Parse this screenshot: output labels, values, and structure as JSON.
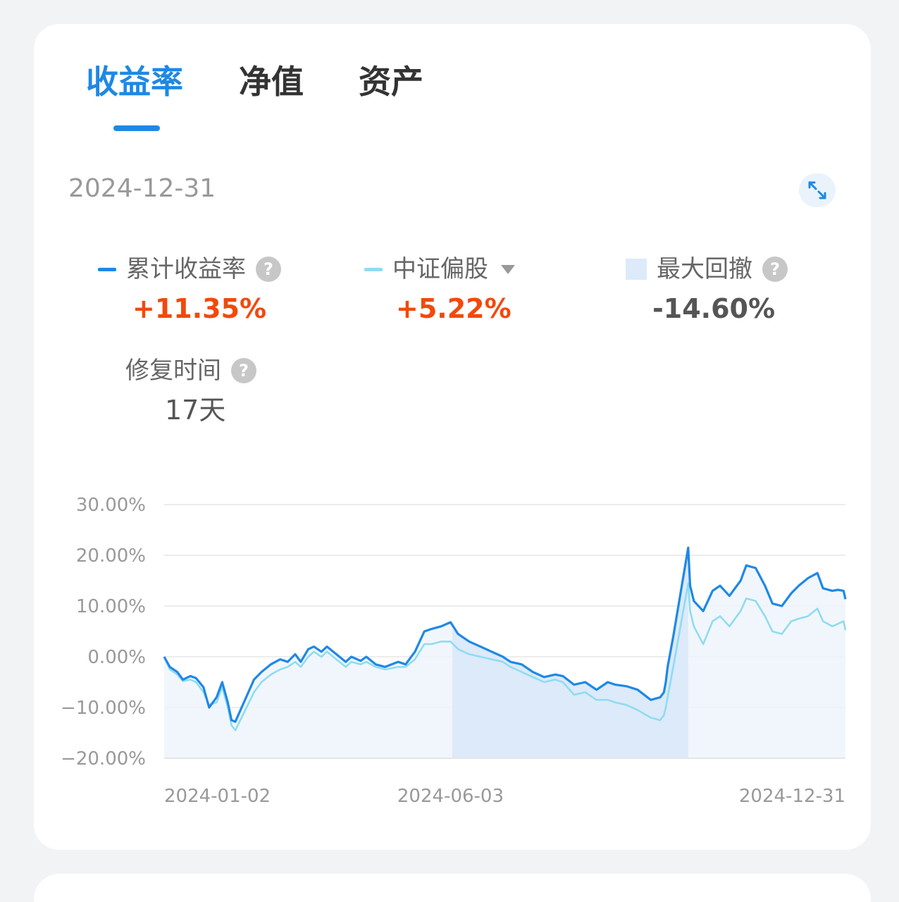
{
  "tabs": [
    {
      "label": "收益率",
      "active": true
    },
    {
      "label": "净值",
      "active": false
    },
    {
      "label": "资产",
      "active": false
    }
  ],
  "date": "2024-12-31",
  "icons": {
    "expand": "expand-arrows-icon",
    "help": "question-icon",
    "dropdown": "caret-down-icon"
  },
  "metrics": {
    "cumulative": {
      "label": "累计收益率",
      "value": "+11.35%",
      "color": "#1e88e5"
    },
    "benchmark": {
      "label": "中证偏股",
      "value": "+5.22%",
      "color": "#8fdcef"
    },
    "max_drawdown": {
      "label": "最大回撤",
      "value": "-14.60%",
      "color": "#dceafa"
    },
    "recovery": {
      "label": "修复时间",
      "value": "17天"
    }
  },
  "help_glyph": "?",
  "colors": {
    "accent": "#1e88e5",
    "up": "#f2490c",
    "benchmark": "#8fdcef",
    "drawdown_area": "#dceafa"
  },
  "chart_data": {
    "type": "line",
    "y_unit": "%",
    "ylim": [
      -20,
      30
    ],
    "y_ticks": [
      30,
      20,
      10,
      0,
      -10,
      -20
    ],
    "y_tick_labels": [
      "30.00%",
      "20.00%",
      "10.00%",
      "0.00%",
      "−10.00%",
      "−20.00%"
    ],
    "x_tick_labels": [
      "2024-01-02",
      "2024-06-03",
      "2024-12-31"
    ],
    "x_range": [
      "2024-01-02",
      "2024-12-31"
    ],
    "grid": true,
    "drawdown_period": [
      "2024-06-04",
      "2024-10-08"
    ],
    "series": [
      {
        "name": "累计收益率",
        "color": "#1e88e5",
        "points": [
          [
            "2024-01-02",
            0.0
          ],
          [
            "2024-01-05",
            -2.0
          ],
          [
            "2024-01-09",
            -3.0
          ],
          [
            "2024-01-12",
            -4.5
          ],
          [
            "2024-01-16",
            -3.8
          ],
          [
            "2024-01-19",
            -4.2
          ],
          [
            "2024-01-23",
            -6.0
          ],
          [
            "2024-01-26",
            -10.0
          ],
          [
            "2024-01-30",
            -8.0
          ],
          [
            "2024-02-02",
            -5.0
          ],
          [
            "2024-02-05",
            -9.0
          ],
          [
            "2024-02-07",
            -12.5
          ],
          [
            "2024-02-09",
            -12.8
          ],
          [
            "2024-02-19",
            -4.5
          ],
          [
            "2024-02-23",
            -3.0
          ],
          [
            "2024-02-28",
            -1.5
          ],
          [
            "2024-03-04",
            -0.5
          ],
          [
            "2024-03-08",
            -1.0
          ],
          [
            "2024-03-12",
            0.5
          ],
          [
            "2024-03-15",
            -1.0
          ],
          [
            "2024-03-19",
            1.5
          ],
          [
            "2024-03-22",
            2.0
          ],
          [
            "2024-03-26",
            1.0
          ],
          [
            "2024-03-29",
            2.0
          ],
          [
            "2024-04-03",
            0.5
          ],
          [
            "2024-04-08",
            -1.0
          ],
          [
            "2024-04-11",
            0.0
          ],
          [
            "2024-04-16",
            -0.8
          ],
          [
            "2024-04-19",
            0.0
          ],
          [
            "2024-04-24",
            -1.5
          ],
          [
            "2024-04-29",
            -2.0
          ],
          [
            "2024-05-06",
            -1.0
          ],
          [
            "2024-05-10",
            -1.5
          ],
          [
            "2024-05-15",
            1.0
          ],
          [
            "2024-05-20",
            5.0
          ],
          [
            "2024-05-24",
            5.5
          ],
          [
            "2024-05-29",
            6.0
          ],
          [
            "2024-06-03",
            6.8
          ],
          [
            "2024-06-07",
            4.5
          ],
          [
            "2024-06-13",
            3.0
          ],
          [
            "2024-06-19",
            2.0
          ],
          [
            "2024-06-25",
            1.0
          ],
          [
            "2024-07-01",
            0.0
          ],
          [
            "2024-07-05",
            -1.0
          ],
          [
            "2024-07-11",
            -1.5
          ],
          [
            "2024-07-17",
            -3.0
          ],
          [
            "2024-07-23",
            -4.0
          ],
          [
            "2024-07-29",
            -3.5
          ],
          [
            "2024-08-02",
            -3.8
          ],
          [
            "2024-08-08",
            -5.5
          ],
          [
            "2024-08-14",
            -5.0
          ],
          [
            "2024-08-20",
            -6.5
          ],
          [
            "2024-08-26",
            -5.0
          ],
          [
            "2024-08-30",
            -5.5
          ],
          [
            "2024-09-05",
            -5.8
          ],
          [
            "2024-09-11",
            -6.5
          ],
          [
            "2024-09-18",
            -8.5
          ],
          [
            "2024-09-23",
            -8.0
          ],
          [
            "2024-09-25",
            -7.0
          ],
          [
            "2024-09-26",
            -5.0
          ],
          [
            "2024-09-27",
            -2.0
          ],
          [
            "2024-09-30",
            4.0
          ],
          [
            "2024-10-08",
            21.5
          ],
          [
            "2024-10-09",
            14.0
          ],
          [
            "2024-10-11",
            11.0
          ],
          [
            "2024-10-16",
            9.0
          ],
          [
            "2024-10-21",
            13.0
          ],
          [
            "2024-10-25",
            14.0
          ],
          [
            "2024-10-30",
            12.0
          ],
          [
            "2024-11-05",
            15.0
          ],
          [
            "2024-11-08",
            18.0
          ],
          [
            "2024-11-13",
            17.5
          ],
          [
            "2024-11-18",
            14.0
          ],
          [
            "2024-11-22",
            10.5
          ],
          [
            "2024-11-27",
            10.0
          ],
          [
            "2024-12-02",
            12.5
          ],
          [
            "2024-12-06",
            14.0
          ],
          [
            "2024-12-11",
            15.5
          ],
          [
            "2024-12-16",
            16.5
          ],
          [
            "2024-12-19",
            13.5
          ],
          [
            "2024-12-24",
            13.0
          ],
          [
            "2024-12-27",
            13.2
          ],
          [
            "2024-12-30",
            13.0
          ],
          [
            "2024-12-31",
            11.35
          ]
        ]
      },
      {
        "name": "中证偏股",
        "color": "#8fdcef",
        "points": [
          [
            "2024-01-02",
            0.0
          ],
          [
            "2024-01-05",
            -2.5
          ],
          [
            "2024-01-09",
            -3.5
          ],
          [
            "2024-01-12",
            -4.8
          ],
          [
            "2024-01-16",
            -4.5
          ],
          [
            "2024-01-19",
            -5.0
          ],
          [
            "2024-01-23",
            -7.0
          ],
          [
            "2024-01-26",
            -9.5
          ],
          [
            "2024-01-30",
            -9.0
          ],
          [
            "2024-02-02",
            -6.0
          ],
          [
            "2024-02-05",
            -10.0
          ],
          [
            "2024-02-07",
            -13.5
          ],
          [
            "2024-02-09",
            -14.5
          ],
          [
            "2024-02-19",
            -7.0
          ],
          [
            "2024-02-23",
            -5.0
          ],
          [
            "2024-02-28",
            -3.5
          ],
          [
            "2024-03-04",
            -2.5
          ],
          [
            "2024-03-08",
            -2.0
          ],
          [
            "2024-03-12",
            -1.0
          ],
          [
            "2024-03-15",
            -2.0
          ],
          [
            "2024-03-19",
            0.0
          ],
          [
            "2024-03-22",
            1.0
          ],
          [
            "2024-03-26",
            0.0
          ],
          [
            "2024-03-29",
            1.0
          ],
          [
            "2024-04-03",
            -0.5
          ],
          [
            "2024-04-08",
            -2.0
          ],
          [
            "2024-04-11",
            -1.0
          ],
          [
            "2024-04-16",
            -1.5
          ],
          [
            "2024-04-19",
            -1.0
          ],
          [
            "2024-04-24",
            -2.0
          ],
          [
            "2024-04-29",
            -2.5
          ],
          [
            "2024-05-06",
            -2.0
          ],
          [
            "2024-05-10",
            -2.0
          ],
          [
            "2024-05-15",
            -0.5
          ],
          [
            "2024-05-20",
            2.5
          ],
          [
            "2024-05-24",
            2.5
          ],
          [
            "2024-05-29",
            3.0
          ],
          [
            "2024-06-03",
            3.0
          ],
          [
            "2024-06-07",
            1.5
          ],
          [
            "2024-06-13",
            0.5
          ],
          [
            "2024-06-19",
            0.0
          ],
          [
            "2024-06-25",
            -0.5
          ],
          [
            "2024-07-01",
            -1.0
          ],
          [
            "2024-07-05",
            -2.0
          ],
          [
            "2024-07-11",
            -3.0
          ],
          [
            "2024-07-17",
            -4.0
          ],
          [
            "2024-07-23",
            -5.0
          ],
          [
            "2024-07-29",
            -4.5
          ],
          [
            "2024-08-02",
            -5.0
          ],
          [
            "2024-08-08",
            -7.5
          ],
          [
            "2024-08-14",
            -7.0
          ],
          [
            "2024-08-20",
            -8.5
          ],
          [
            "2024-08-26",
            -8.5
          ],
          [
            "2024-08-30",
            -9.0
          ],
          [
            "2024-09-05",
            -9.5
          ],
          [
            "2024-09-11",
            -10.5
          ],
          [
            "2024-09-18",
            -12.0
          ],
          [
            "2024-09-23",
            -12.5
          ],
          [
            "2024-09-25",
            -11.5
          ],
          [
            "2024-09-26",
            -10.0
          ],
          [
            "2024-09-27",
            -8.0
          ],
          [
            "2024-09-30",
            -2.0
          ],
          [
            "2024-10-08",
            14.5
          ],
          [
            "2024-10-09",
            9.0
          ],
          [
            "2024-10-11",
            6.0
          ],
          [
            "2024-10-16",
            2.5
          ],
          [
            "2024-10-21",
            7.0
          ],
          [
            "2024-10-25",
            8.0
          ],
          [
            "2024-10-30",
            6.0
          ],
          [
            "2024-11-05",
            9.0
          ],
          [
            "2024-11-08",
            11.5
          ],
          [
            "2024-11-13",
            11.0
          ],
          [
            "2024-11-18",
            8.0
          ],
          [
            "2024-11-22",
            5.0
          ],
          [
            "2024-11-27",
            4.5
          ],
          [
            "2024-12-02",
            7.0
          ],
          [
            "2024-12-06",
            7.5
          ],
          [
            "2024-12-11",
            8.0
          ],
          [
            "2024-12-16",
            9.5
          ],
          [
            "2024-12-19",
            7.0
          ],
          [
            "2024-12-24",
            6.0
          ],
          [
            "2024-12-27",
            6.5
          ],
          [
            "2024-12-30",
            7.0
          ],
          [
            "2024-12-31",
            5.22
          ]
        ]
      }
    ]
  }
}
